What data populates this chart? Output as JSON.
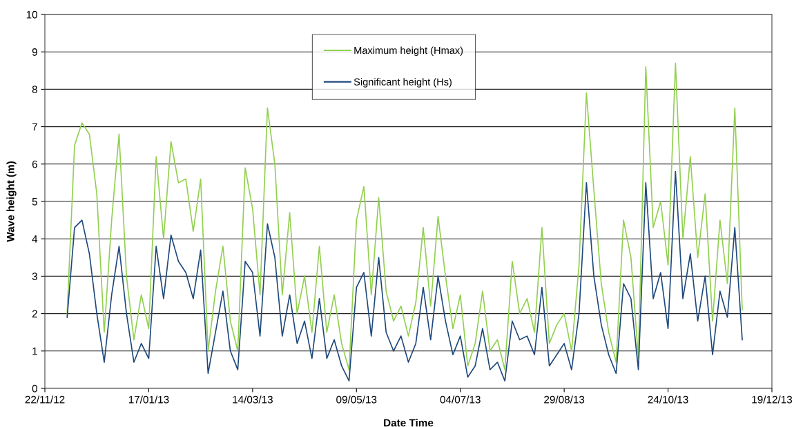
{
  "chart_data": {
    "type": "line",
    "xlabel": "Date Time",
    "ylabel": "Wave height (m)",
    "x": [
      "2012-12-04",
      "2012-12-08",
      "2012-12-12",
      "2012-12-16",
      "2012-12-20",
      "2012-12-24",
      "2012-12-28",
      "2013-01-01",
      "2013-01-05",
      "2013-01-09",
      "2013-01-13",
      "2013-01-17",
      "2013-01-21",
      "2013-01-25",
      "2013-01-29",
      "2013-02-02",
      "2013-02-06",
      "2013-02-10",
      "2013-02-14",
      "2013-02-18",
      "2013-02-22",
      "2013-02-26",
      "2013-03-02",
      "2013-03-06",
      "2013-03-10",
      "2013-03-14",
      "2013-03-18",
      "2013-03-22",
      "2013-03-26",
      "2013-03-30",
      "2013-04-03",
      "2013-04-07",
      "2013-04-11",
      "2013-04-15",
      "2013-04-19",
      "2013-04-23",
      "2013-04-27",
      "2013-05-01",
      "2013-05-05",
      "2013-05-09",
      "2013-05-13",
      "2013-05-17",
      "2013-05-21",
      "2013-05-25",
      "2013-05-29",
      "2013-06-02",
      "2013-06-06",
      "2013-06-10",
      "2013-06-14",
      "2013-06-18",
      "2013-06-22",
      "2013-06-26",
      "2013-06-30",
      "2013-07-04",
      "2013-07-08",
      "2013-07-12",
      "2013-07-16",
      "2013-07-20",
      "2013-07-24",
      "2013-07-28",
      "2013-08-01",
      "2013-08-05",
      "2013-08-09",
      "2013-08-13",
      "2013-08-17",
      "2013-08-21",
      "2013-08-25",
      "2013-08-29",
      "2013-09-02",
      "2013-09-06",
      "2013-09-10",
      "2013-09-14",
      "2013-09-18",
      "2013-09-22",
      "2013-09-26",
      "2013-09-30",
      "2013-10-04",
      "2013-10-08",
      "2013-10-12",
      "2013-10-16",
      "2013-10-20",
      "2013-10-24",
      "2013-10-28",
      "2013-11-01",
      "2013-11-05",
      "2013-11-09",
      "2013-11-13",
      "2013-11-17",
      "2013-11-21",
      "2013-11-25",
      "2013-11-29",
      "2013-12-03"
    ],
    "series": [
      {
        "name": "Maximum height (Hmax)",
        "color": "#92d050",
        "values": [
          2.0,
          6.5,
          7.1,
          6.8,
          5.2,
          1.5,
          4.5,
          6.8,
          3.0,
          1.3,
          2.5,
          1.6,
          6.2,
          4.0,
          6.6,
          5.5,
          5.6,
          4.2,
          5.6,
          1.0,
          2.6,
          3.8,
          1.8,
          1.0,
          5.9,
          4.8,
          2.5,
          7.5,
          6.0,
          2.5,
          4.7,
          2.0,
          3.0,
          1.5,
          3.8,
          1.5,
          2.5,
          1.2,
          0.5,
          4.5,
          5.4,
          2.5,
          5.1,
          2.6,
          1.8,
          2.2,
          1.4,
          2.3,
          4.3,
          2.2,
          4.6,
          3.0,
          1.6,
          2.5,
          0.6,
          1.2,
          2.6,
          1.0,
          1.3,
          0.5,
          3.4,
          2.0,
          2.4,
          1.5,
          4.3,
          1.2,
          1.7,
          2.0,
          1.0,
          3.3,
          7.9,
          5.3,
          2.8,
          1.5,
          0.7,
          4.5,
          3.5,
          0.8,
          8.6,
          4.3,
          5.0,
          3.3,
          8.7,
          4.0,
          6.2,
          3.5,
          5.2,
          1.8,
          4.5,
          2.8,
          7.5,
          2.1
        ]
      },
      {
        "name": "Significant height (Hs)",
        "color": "#1f497d",
        "values": [
          1.9,
          4.3,
          4.5,
          3.6,
          2.0,
          0.7,
          2.5,
          3.8,
          2.0,
          0.7,
          1.2,
          0.8,
          3.8,
          2.4,
          4.1,
          3.4,
          3.1,
          2.4,
          3.7,
          0.4,
          1.5,
          2.6,
          1.0,
          0.5,
          3.4,
          3.1,
          1.4,
          4.4,
          3.5,
          1.4,
          2.5,
          1.2,
          1.8,
          0.8,
          2.4,
          0.8,
          1.3,
          0.6,
          0.2,
          2.7,
          3.1,
          1.4,
          3.5,
          1.5,
          1.0,
          1.4,
          0.7,
          1.2,
          2.7,
          1.3,
          3.0,
          1.8,
          0.9,
          1.4,
          0.3,
          0.6,
          1.6,
          0.5,
          0.7,
          0.2,
          1.8,
          1.3,
          1.4,
          0.9,
          2.7,
          0.6,
          0.9,
          1.2,
          0.5,
          2.0,
          5.5,
          3.0,
          1.7,
          0.9,
          0.4,
          2.8,
          2.4,
          0.5,
          5.5,
          2.4,
          3.1,
          1.6,
          5.8,
          2.4,
          3.6,
          1.8,
          3.0,
          0.9,
          2.6,
          1.9,
          4.3,
          1.3
        ]
      }
    ],
    "xlim": [
      "2012-11-22",
      "2013-12-19"
    ],
    "xticks": [
      {
        "value": "2012-11-22",
        "label": "22/11/12"
      },
      {
        "value": "2013-01-17",
        "label": "17/01/13"
      },
      {
        "value": "2013-03-14",
        "label": "14/03/13"
      },
      {
        "value": "2013-05-09",
        "label": "09/05/13"
      },
      {
        "value": "2013-07-04",
        "label": "04/07/13"
      },
      {
        "value": "2013-08-29",
        "label": "29/08/13"
      },
      {
        "value": "2013-10-24",
        "label": "24/10/13"
      },
      {
        "value": "2013-12-19",
        "label": "19/12/13"
      }
    ],
    "ylim": [
      0,
      10
    ],
    "yticks": [
      0,
      1,
      2,
      3,
      4,
      5,
      6,
      7,
      8,
      9,
      10
    ],
    "grid": "y",
    "legend": "top",
    "marker": "none",
    "line_style": "solid"
  }
}
